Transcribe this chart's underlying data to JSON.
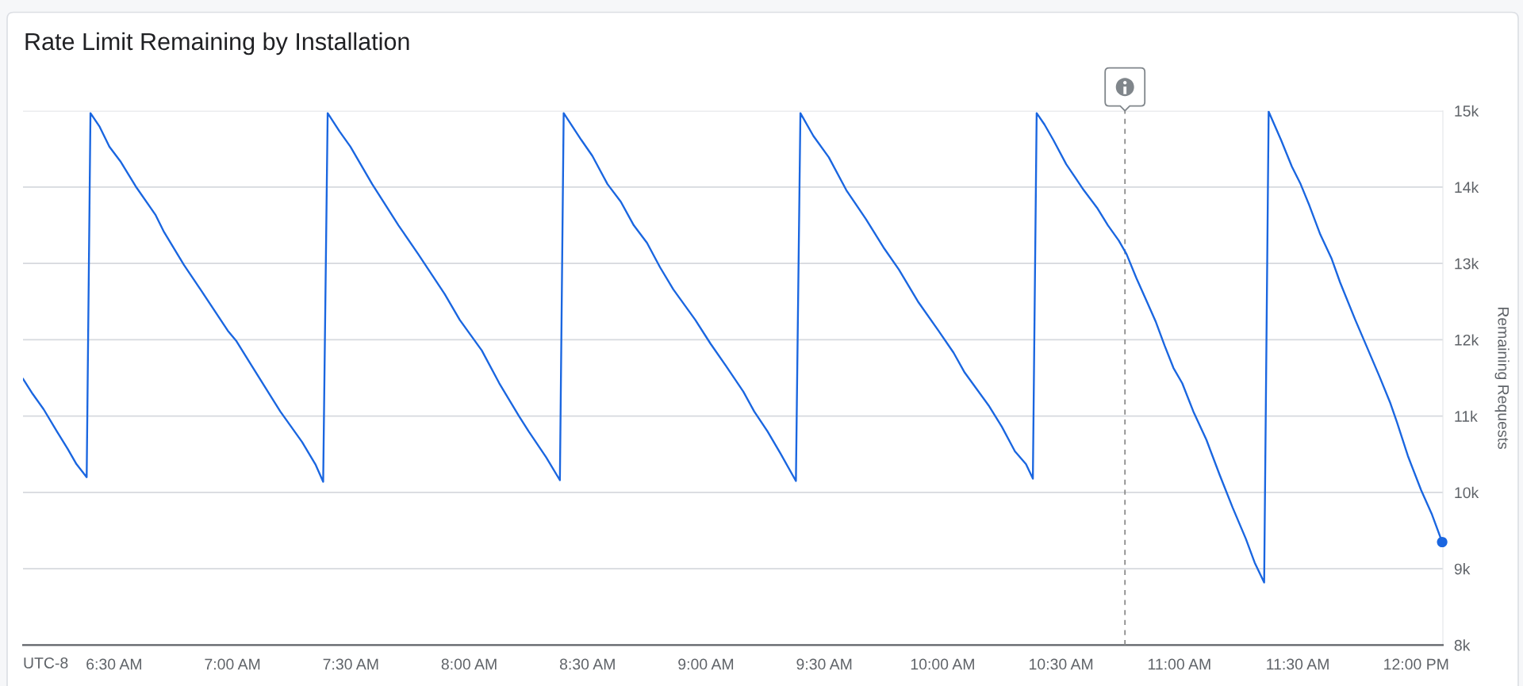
{
  "chart_data": {
    "type": "line",
    "title": "Rate Limit Remaining by Installation",
    "xlabel": "UTC-8",
    "ylabel": "Remaining Requests",
    "xlim": [
      6.115,
      12.113
    ],
    "xticks": [
      {
        "value": 6.5,
        "label": "6:30 AM"
      },
      {
        "value": 7,
        "label": "7:00 AM"
      },
      {
        "value": 7.5,
        "label": "7:30 AM"
      },
      {
        "value": 8,
        "label": "8:00 AM"
      },
      {
        "value": 8.5,
        "label": "8:30 AM"
      },
      {
        "value": 9,
        "label": "9:00 AM"
      },
      {
        "value": 9.5,
        "label": "9:30 AM"
      },
      {
        "value": 10,
        "label": "10:00 AM"
      },
      {
        "value": 10.5,
        "label": "10:30 AM"
      },
      {
        "value": 11,
        "label": "11:00 AM"
      },
      {
        "value": 11.5,
        "label": "11:30 AM"
      },
      {
        "value": 12,
        "label": "12:00 PM"
      }
    ],
    "ylim": [
      8000,
      15000
    ],
    "yticks": [
      {
        "value": 8000,
        "label": "8k"
      },
      {
        "value": 9000,
        "label": "9k"
      },
      {
        "value": 10000,
        "label": "10k"
      },
      {
        "value": 11000,
        "label": "11k"
      },
      {
        "value": 12000,
        "label": "12k"
      },
      {
        "value": 13000,
        "label": "13k"
      },
      {
        "value": 14000,
        "label": "14k"
      },
      {
        "value": 15000,
        "label": "15k"
      }
    ],
    "grid": "y",
    "ref_lines": [
      {
        "axis": "x",
        "value": 10.77,
        "color": "#8c8c8c",
        "line_style": "dashed"
      }
    ],
    "series": [
      {
        "color": "#1a66e0",
        "x": [
          6.115,
          6.156,
          6.202,
          6.258,
          6.304,
          6.341,
          6.384,
          6.4,
          6.439,
          6.48,
          6.526,
          6.591,
          6.674,
          6.711,
          6.795,
          6.869,
          6.98,
          7.017,
          7.081,
          7.202,
          7.294,
          7.35,
          7.383,
          7.402,
          7.452,
          7.498,
          7.59,
          7.701,
          7.785,
          7.896,
          7.96,
          8.053,
          8.127,
          8.21,
          8.251,
          8.325,
          8.383,
          8.399,
          8.473,
          8.52,
          8.584,
          8.64,
          8.695,
          8.751,
          8.806,
          8.862,
          8.955,
          9.019,
          9.084,
          9.158,
          9.204,
          9.26,
          9.315,
          9.38,
          9.399,
          9.454,
          9.519,
          9.593,
          9.676,
          9.75,
          9.815,
          9.898,
          9.982,
          10.046,
          10.093,
          10.194,
          10.25,
          10.305,
          10.352,
          10.381,
          10.397,
          10.43,
          10.467,
          10.522,
          10.559,
          10.596,
          10.652,
          10.698,
          10.744,
          10.777,
          10.818,
          10.864,
          10.901,
          10.938,
          10.975,
          11.012,
          11.059,
          11.114,
          11.17,
          11.225,
          11.281,
          11.318,
          11.358,
          11.377,
          11.429,
          11.475,
          11.512,
          11.549,
          11.595,
          11.642,
          11.679,
          11.743,
          11.79,
          11.845,
          11.891,
          11.919,
          11.965,
          12.021,
          12.067,
          12.11
        ],
        "values": [
          11490,
          11290,
          11090,
          10800,
          10570,
          10370,
          10200,
          14970,
          14790,
          14530,
          14340,
          14010,
          13640,
          13410,
          12980,
          12640,
          12120,
          11980,
          11660,
          11060,
          10660,
          10370,
          10140,
          14970,
          14730,
          14530,
          14040,
          13500,
          13120,
          12600,
          12260,
          11860,
          11430,
          11000,
          10800,
          10460,
          10160,
          14970,
          14620,
          14410,
          14040,
          13810,
          13500,
          13270,
          12950,
          12660,
          12260,
          11950,
          11660,
          11320,
          11060,
          10800,
          10510,
          10150,
          14970,
          14670,
          14390,
          13960,
          13580,
          13210,
          12920,
          12490,
          12120,
          11830,
          11570,
          11140,
          10860,
          10540,
          10370,
          10180,
          14970,
          14820,
          14620,
          14300,
          14130,
          13960,
          13730,
          13500,
          13300,
          13120,
          12810,
          12490,
          12230,
          11920,
          11630,
          11430,
          11060,
          10690,
          10230,
          9800,
          9390,
          9080,
          8820,
          14990,
          14620,
          14270,
          14040,
          13760,
          13380,
          13070,
          12750,
          12260,
          11920,
          11520,
          11170,
          10920,
          10480,
          10030,
          9710,
          9350
        ]
      },
      {
        "type": "scatter",
        "color": "#1a66e0",
        "marker": "circle",
        "x": [
          12.11
        ],
        "values": [
          9350
        ]
      }
    ]
  }
}
